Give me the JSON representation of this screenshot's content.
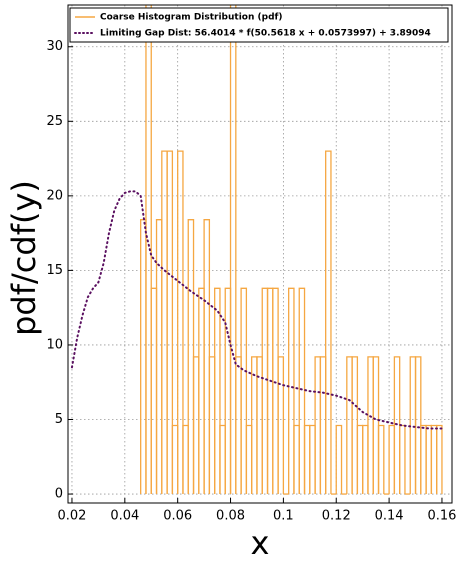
{
  "chart_data": {
    "type": "histogram",
    "xlabel": "x",
    "ylabel": "pdf/cdf(y)",
    "xlim": [
      0.0185,
      0.1638
    ],
    "ylim": [
      -0.6,
      32.8
    ],
    "xticks": [
      0.02,
      0.04,
      0.06,
      0.08,
      0.1,
      0.12,
      0.14,
      0.16
    ],
    "yticks": [
      0,
      5,
      10,
      15,
      20,
      25,
      30
    ],
    "grid": true,
    "legend": "upper left",
    "histogram": {
      "name": "Coarse Histogram Distribution (pdf)",
      "color": "#f5a742",
      "bins": [
        0.046,
        0.048,
        0.05,
        0.052,
        0.054,
        0.056,
        0.058,
        0.06,
        0.062,
        0.064,
        0.066,
        0.068,
        0.07,
        0.072,
        0.074,
        0.076,
        0.078,
        0.08,
        0.082,
        0.084,
        0.086,
        0.088,
        0.09,
        0.092,
        0.094,
        0.096,
        0.098,
        0.1,
        0.102,
        0.104,
        0.106,
        0.108,
        0.11,
        0.112,
        0.114,
        0.116,
        0.118,
        0.12,
        0.122,
        0.124,
        0.126,
        0.128,
        0.13,
        0.132,
        0.134,
        0.136,
        0.138,
        0.14,
        0.142,
        0.144,
        0.146,
        0.148,
        0.15,
        0.152,
        0.154,
        0.156,
        0.158,
        0.16
      ],
      "values": [
        18.4,
        33,
        13.8,
        18.4,
        23,
        23,
        4.6,
        23,
        4.6,
        18.4,
        9.2,
        13.8,
        18.4,
        9.2,
        13.8,
        4.6,
        13.8,
        33,
        9.2,
        13.8,
        4.6,
        9.2,
        9.2,
        13.8,
        13.8,
        13.8,
        9.2,
        0,
        13.8,
        4.6,
        13.8,
        4.6,
        4.6,
        9.2,
        9.2,
        23,
        0,
        4.6,
        0,
        9.2,
        9.2,
        4.6,
        4.6,
        9.2,
        9.2,
        4.6,
        0,
        4.6,
        9.2,
        4.6,
        0,
        9.2,
        9.2,
        4.6,
        4.6,
        4.6,
        4.6
      ]
    },
    "line": {
      "name": "Limiting Gap Dist: 56.4014 * f(50.5618 x + 0.0573997) + 3.89094",
      "color": "#5a1060",
      "x": [
        0.02,
        0.022,
        0.024,
        0.026,
        0.028,
        0.03,
        0.032,
        0.034,
        0.036,
        0.038,
        0.04,
        0.042,
        0.044,
        0.046,
        0.048,
        0.05,
        0.052,
        0.055,
        0.06,
        0.065,
        0.07,
        0.075,
        0.078,
        0.08,
        0.082,
        0.085,
        0.09,
        0.095,
        0.1,
        0.105,
        0.11,
        0.115,
        0.12,
        0.125,
        0.13,
        0.135,
        0.14,
        0.145,
        0.15,
        0.155,
        0.16
      ],
      "values": [
        8.5,
        10.5,
        12,
        13.2,
        13.8,
        14.2,
        15.5,
        17.5,
        19,
        19.8,
        20.2,
        20.3,
        20.3,
        20,
        17.5,
        16,
        15.5,
        15,
        14.3,
        13.6,
        13,
        12.3,
        11.5,
        10,
        8.7,
        8.3,
        7.9,
        7.6,
        7.3,
        7.1,
        6.9,
        6.8,
        6.6,
        6.3,
        5.5,
        5,
        4.8,
        4.6,
        4.5,
        4.4,
        4.4
      ]
    }
  }
}
